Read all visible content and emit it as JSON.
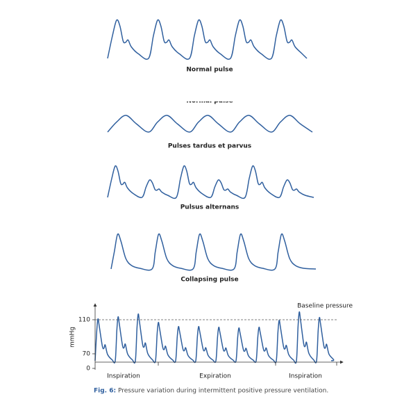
{
  "panels": [
    {
      "label": "Normal pulse"
    },
    {
      "label": "Normal pulse"
    },
    {
      "label": "Pulses tardus et parvus"
    },
    {
      "label": "Pulsus alternans"
    },
    {
      "label": "Collapsing pulse"
    }
  ],
  "pressure": {
    "axis_label": "mmHg",
    "ticks": [
      "110",
      "70",
      "0"
    ],
    "annotation": "Baseline pressure",
    "phases": [
      "Inspiration",
      "Expiration",
      "Inspiration"
    ]
  },
  "caption": {
    "label": "Fig. 6:",
    "text": "Pressure variation during intermittent positive pressure ventilation."
  }
}
